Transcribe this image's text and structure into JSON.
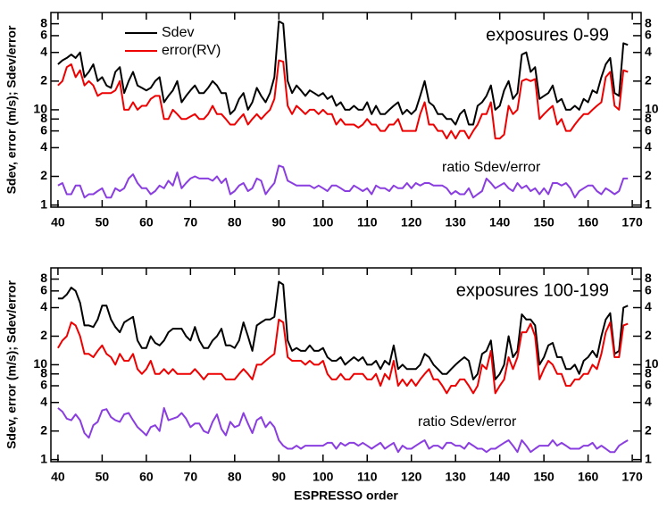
{
  "chart_data": [
    {
      "type": "line",
      "title": "exposures 0-99",
      "ylabel": "Sdev, error (m/s); Sdev/error",
      "annotation": "ratio Sdev/error",
      "legend": "top-left",
      "log_y": true,
      "xlim": [
        38.4,
        172
      ],
      "xticks": [
        40,
        50,
        60,
        70,
        80,
        90,
        100,
        110,
        120,
        130,
        140,
        150,
        160,
        170
      ],
      "ylim": [
        0.95,
        105
      ],
      "yticks": [
        1,
        {
          "value": 2,
          "label": "2"
        },
        4,
        6,
        8,
        10,
        {
          "value": 20,
          "label": "2"
        },
        {
          "value": 40,
          "label": "4"
        },
        {
          "value": 60,
          "label": "6"
        },
        {
          "value": 80,
          "label": "8"
        }
      ],
      "x": [
        40,
        41,
        42,
        43,
        44,
        45,
        46,
        47,
        48,
        49,
        50,
        51,
        52,
        53,
        54,
        55,
        56,
        57,
        58,
        59,
        60,
        61,
        62,
        63,
        64,
        65,
        66,
        67,
        68,
        69,
        70,
        71,
        72,
        73,
        74,
        75,
        76,
        77,
        78,
        79,
        80,
        81,
        82,
        83,
        84,
        85,
        86,
        87,
        88,
        89,
        90,
        91,
        92,
        93,
        94,
        95,
        96,
        97,
        98,
        99,
        100,
        101,
        102,
        103,
        104,
        105,
        106,
        107,
        108,
        109,
        110,
        111,
        112,
        113,
        114,
        115,
        116,
        117,
        118,
        119,
        120,
        121,
        122,
        123,
        124,
        125,
        126,
        127,
        128,
        129,
        130,
        131,
        132,
        133,
        134,
        135,
        136,
        137,
        138,
        139,
        140,
        141,
        142,
        143,
        144,
        145,
        146,
        147,
        148,
        149,
        150,
        151,
        152,
        153,
        154,
        155,
        156,
        157,
        158,
        159,
        160,
        161,
        162,
        163,
        164,
        165,
        166,
        167,
        168,
        169
      ],
      "series": [
        {
          "name": "Sdev",
          "color": "#000000",
          "values": [
            30,
            33,
            35,
            38,
            35,
            40,
            22,
            25,
            30,
            20,
            22,
            18,
            17,
            25,
            28,
            15,
            20,
            25,
            18,
            17,
            16,
            17,
            20,
            22,
            12,
            14,
            16,
            20,
            12,
            14,
            16,
            18,
            15,
            15,
            17,
            20,
            18,
            15,
            15,
            9,
            10,
            13,
            15,
            10,
            12,
            17,
            14,
            12,
            15,
            22,
            85,
            80,
            20,
            15,
            18,
            16,
            14,
            16,
            15,
            14,
            15,
            13,
            14,
            11,
            12,
            10,
            10,
            11,
            10,
            10,
            12,
            9,
            11,
            9,
            9,
            10,
            11,
            12,
            9,
            10,
            9,
            10,
            14,
            20,
            12,
            11,
            9,
            9,
            8,
            8,
            7,
            9,
            10,
            7,
            7,
            11,
            12,
            14,
            18,
            10,
            11,
            16,
            20,
            13,
            15,
            38,
            40,
            25,
            28,
            13,
            14,
            15,
            18,
            12,
            13,
            10,
            10,
            11,
            10,
            13,
            12,
            16,
            15,
            22,
            30,
            35,
            15,
            14,
            50,
            48
          ]
        },
        {
          "name": "error(RV)",
          "color": "#ee0000",
          "values": [
            18,
            20,
            28,
            30,
            22,
            26,
            18,
            20,
            18,
            14,
            15,
            15,
            15,
            16,
            20,
            10,
            10,
            12,
            10,
            11,
            11,
            13,
            14,
            14,
            8,
            8,
            10,
            9,
            8,
            8,
            8.5,
            9,
            8,
            8,
            9,
            11,
            9,
            9,
            8,
            7,
            7,
            8,
            9,
            7,
            8,
            9,
            8,
            9,
            10,
            13,
            33,
            32,
            11,
            9,
            11,
            10,
            9,
            10,
            10,
            9,
            10,
            9,
            9,
            7,
            8,
            7,
            7,
            7,
            6.5,
            7,
            8,
            7,
            7,
            6,
            6,
            7,
            7,
            8,
            6,
            6,
            6,
            6,
            9,
            12,
            7,
            7,
            6,
            6,
            5,
            6,
            5,
            6,
            6,
            5,
            6,
            7,
            9,
            9,
            12,
            5,
            5,
            5.5,
            11,
            9,
            10,
            20,
            21,
            20,
            21,
            8,
            9,
            10,
            11,
            7,
            8,
            6,
            6,
            7,
            8,
            9,
            9,
            10,
            11,
            12,
            22,
            25,
            11,
            10,
            26,
            25
          ]
        },
        {
          "color": "#8a3ee0",
          "values": [
            1.6,
            1.7,
            1.3,
            1.3,
            1.6,
            1.6,
            1.2,
            1.3,
            1.3,
            1.4,
            1.5,
            1.2,
            1.2,
            1.5,
            1.4,
            1.5,
            1.9,
            2.1,
            1.7,
            1.5,
            1.5,
            1.3,
            1.4,
            1.6,
            1.5,
            1.8,
            1.6,
            2.2,
            1.5,
            1.7,
            1.9,
            2.0,
            1.9,
            1.9,
            1.9,
            1.8,
            2.0,
            1.7,
            1.9,
            1.3,
            1.4,
            1.6,
            1.7,
            1.4,
            1.5,
            1.9,
            1.8,
            1.3,
            1.5,
            1.7,
            2.6,
            2.5,
            1.8,
            1.7,
            1.6,
            1.6,
            1.6,
            1.6,
            1.5,
            1.6,
            1.5,
            1.4,
            1.6,
            1.6,
            1.5,
            1.4,
            1.4,
            1.6,
            1.5,
            1.4,
            1.5,
            1.3,
            1.6,
            1.5,
            1.5,
            1.4,
            1.6,
            1.5,
            1.5,
            1.7,
            1.5,
            1.7,
            1.6,
            1.7,
            1.7,
            1.6,
            1.6,
            1.6,
            1.5,
            1.3,
            1.4,
            1.3,
            1.3,
            1.5,
            1.2,
            1.3,
            1.4,
            1.9,
            1.7,
            1.5,
            1.6,
            1.7,
            1.5,
            1.4,
            1.7,
            1.5,
            1.6,
            1.4,
            1.5,
            1.3,
            1.5,
            1.3,
            1.7,
            1.7,
            1.6,
            1.7,
            1.5,
            1.2,
            1.4,
            1.5,
            1.6,
            1.6,
            1.4,
            1.3,
            1.5,
            1.4,
            1.3,
            1.4,
            1.9,
            1.9
          ]
        }
      ]
    },
    {
      "type": "line",
      "title": "exposures 100-199",
      "ylabel": "Sdev, error (m/s); Sdev/error",
      "annotation": "ratio Sdev/error",
      "xlabel": "ESPRESSO order",
      "log_y": true,
      "xlim": [
        38.4,
        172
      ],
      "xticks": [
        40,
        50,
        60,
        70,
        80,
        90,
        100,
        110,
        120,
        130,
        140,
        150,
        160,
        170
      ],
      "ylim": [
        0.95,
        105
      ],
      "yticks": [
        1,
        {
          "value": 2,
          "label": "2"
        },
        4,
        6,
        8,
        10,
        {
          "value": 20,
          "label": "2"
        },
        {
          "value": 40,
          "label": "4"
        },
        {
          "value": 60,
          "label": "6"
        },
        {
          "value": 80,
          "label": "8"
        }
      ],
      "x": [
        40,
        41,
        42,
        43,
        44,
        45,
        46,
        47,
        48,
        49,
        50,
        51,
        52,
        53,
        54,
        55,
        56,
        57,
        58,
        59,
        60,
        61,
        62,
        63,
        64,
        65,
        66,
        67,
        68,
        69,
        70,
        71,
        72,
        73,
        74,
        75,
        76,
        77,
        78,
        79,
        80,
        81,
        82,
        83,
        84,
        85,
        86,
        87,
        88,
        89,
        90,
        91,
        92,
        93,
        94,
        95,
        96,
        97,
        98,
        99,
        100,
        101,
        102,
        103,
        104,
        105,
        106,
        107,
        108,
        109,
        110,
        111,
        112,
        113,
        114,
        115,
        116,
        117,
        118,
        119,
        120,
        121,
        122,
        123,
        124,
        125,
        126,
        127,
        128,
        129,
        130,
        131,
        132,
        133,
        134,
        135,
        136,
        137,
        138,
        139,
        140,
        141,
        142,
        143,
        144,
        145,
        146,
        147,
        148,
        149,
        150,
        151,
        152,
        153,
        154,
        155,
        156,
        157,
        158,
        159,
        160,
        161,
        162,
        163,
        164,
        165,
        166,
        167,
        168,
        169
      ],
      "series": [
        {
          "color": "#000000",
          "values": [
            50,
            50,
            55,
            65,
            60,
            45,
            26,
            26,
            25,
            30,
            42,
            42,
            30,
            25,
            22,
            28,
            30,
            32,
            18,
            15,
            15,
            20,
            17,
            16,
            18,
            22,
            24,
            24,
            24,
            20,
            18,
            25,
            18,
            15,
            15,
            18,
            20,
            24,
            16,
            16,
            15,
            18,
            28,
            20,
            14,
            26,
            28,
            30,
            30,
            32,
            75,
            70,
            18,
            14,
            15,
            14,
            14,
            16,
            14,
            14,
            15,
            12,
            11,
            11,
            12,
            10,
            11,
            12,
            11,
            12,
            10,
            10,
            11,
            9,
            11,
            10,
            16,
            9,
            10,
            9,
            9,
            9,
            10,
            13,
            12,
            10,
            9,
            8,
            8,
            9,
            10,
            11,
            12,
            11,
            7,
            8,
            13,
            14,
            18,
            7,
            8,
            10,
            20,
            12,
            14,
            34,
            30,
            30,
            26,
            10,
            12,
            16,
            17,
            12,
            12,
            9,
            9,
            10,
            8,
            11,
            12,
            14,
            12,
            20,
            30,
            35,
            13,
            14,
            40,
            42
          ]
        },
        {
          "color": "#ee0000",
          "values": [
            15,
            18,
            20,
            28,
            26,
            20,
            13,
            13,
            12,
            14,
            16,
            13,
            12,
            10,
            13,
            11,
            11,
            13,
            9,
            8,
            9,
            11,
            8,
            8,
            9,
            8,
            9,
            8,
            8,
            8,
            8,
            9,
            8,
            7,
            8,
            8,
            8,
            8,
            7,
            7,
            7,
            8,
            9,
            8,
            7,
            10,
            10,
            11,
            12,
            13,
            30,
            28,
            12,
            11,
            11,
            11,
            10,
            11,
            10,
            10,
            11,
            8,
            7,
            7,
            8,
            7,
            7,
            8,
            8,
            8,
            7,
            7,
            8,
            6,
            8,
            7,
            11,
            6,
            7,
            6,
            7,
            6,
            7,
            8,
            9,
            7,
            7,
            6,
            5,
            6,
            6,
            7,
            7,
            6,
            5,
            6,
            10,
            9,
            14,
            5,
            6,
            7,
            12,
            9,
            12,
            22,
            22,
            27,
            20,
            7,
            9,
            11,
            10,
            8,
            8,
            6,
            6,
            7,
            7,
            8,
            8,
            10,
            9,
            13,
            22,
            28,
            12,
            12,
            26,
            27
          ]
        },
        {
          "color": "#8a3ee0",
          "values": [
            3.5,
            3.2,
            2.7,
            2.6,
            3.0,
            2.6,
            1.9,
            1.7,
            2.3,
            2.5,
            3.3,
            3.4,
            2.8,
            2.6,
            2.5,
            3.0,
            3.1,
            2.6,
            2.2,
            2.0,
            1.8,
            2.2,
            2.3,
            2.0,
            3.5,
            2.6,
            2.7,
            2.8,
            3.1,
            2.7,
            2.2,
            2.4,
            2.4,
            2.0,
            1.9,
            2.5,
            3.0,
            2.1,
            1.8,
            2.5,
            2.2,
            2.3,
            3.1,
            2.4,
            1.9,
            2.6,
            2.8,
            2.2,
            2.5,
            2.2,
            1.6,
            1.4,
            1.3,
            1.3,
            1.4,
            1.3,
            1.4,
            1.4,
            1.4,
            1.4,
            1.4,
            1.5,
            1.5,
            1.3,
            1.5,
            1.4,
            1.5,
            1.5,
            1.4,
            1.5,
            1.4,
            1.3,
            1.4,
            1.5,
            1.3,
            1.4,
            1.5,
            1.2,
            1.4,
            1.3,
            1.3,
            1.4,
            1.5,
            1.6,
            1.3,
            1.4,
            1.4,
            1.3,
            1.5,
            1.5,
            1.4,
            1.4,
            1.3,
            1.5,
            1.4,
            1.3,
            1.3,
            1.2,
            1.3,
            1.3,
            1.4,
            1.5,
            1.6,
            1.4,
            1.2,
            1.6,
            1.4,
            1.2,
            1.3,
            1.4,
            1.4,
            1.4,
            1.6,
            1.4,
            1.5,
            1.4,
            1.3,
            1.3,
            1.3,
            1.4,
            1.4,
            1.5,
            1.3,
            1.4,
            1.3,
            1.2,
            1.2,
            1.4,
            1.5,
            1.6
          ]
        }
      ]
    }
  ]
}
